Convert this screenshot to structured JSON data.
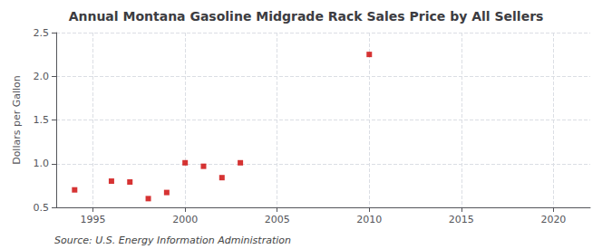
{
  "chart_data": {
    "type": "scatter",
    "title": "Annual Montana Gasoline Midgrade Rack Sales Price by All Sellers",
    "ylabel": "Dollars per Gallon",
    "annotations": [
      "Source: U.S. Energy Information Administration"
    ],
    "x": [
      1994,
      1996,
      1997,
      1998,
      1999,
      2000,
      2001,
      2002,
      2003,
      2010
    ],
    "values": [
      0.7,
      0.8,
      0.79,
      0.6,
      0.67,
      1.01,
      0.97,
      0.84,
      1.01,
      2.25
    ],
    "color": "#cc0000",
    "marker": "square",
    "xlim": [
      1993,
      2022
    ],
    "ylim": [
      0.5,
      2.5
    ],
    "xticks": [
      1995,
      2000,
      2005,
      2010,
      2015,
      2020
    ],
    "yticks": [
      0.5,
      {
        "value": 1.0,
        "label": "1.0"
      },
      1.5,
      {
        "value": 2.0,
        "label": "2.0"
      },
      2.5
    ],
    "grid": true
  }
}
